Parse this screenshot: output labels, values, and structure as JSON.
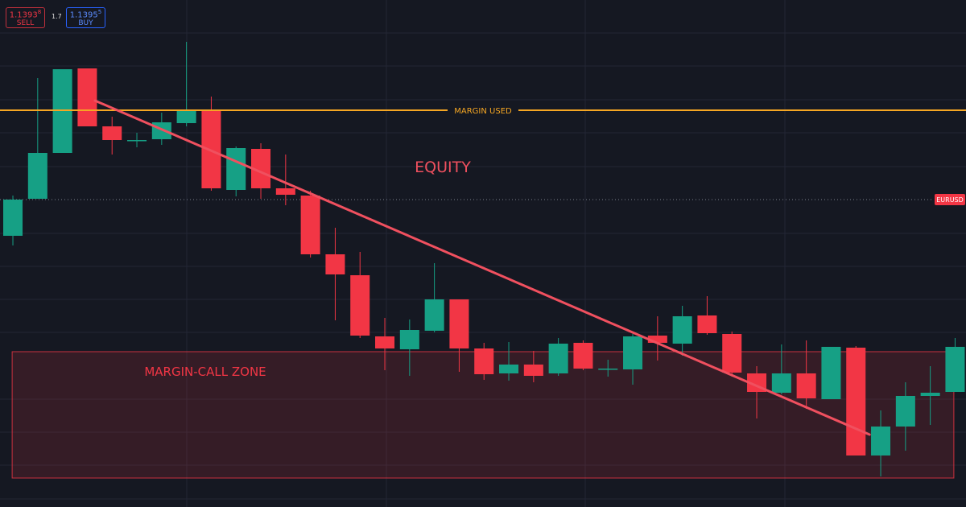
{
  "toolbar": {
    "sell": {
      "price": "1.1393",
      "pip": "8",
      "label": "SELL"
    },
    "spread": "1.7",
    "buy": {
      "price": "1.1395",
      "pip": "5",
      "label": "BUY"
    }
  },
  "chart_data": {
    "type": "candlestick",
    "xlim": [
      -0.52,
      38.44
    ],
    "ylim": [
      1.13558,
      1.14188
    ],
    "up_color": "#16a085",
    "down_color": "#f23645",
    "open": [
      1.13895,
      1.13941,
      1.13998,
      1.14103,
      1.14031,
      1.14014,
      1.14015,
      1.14035,
      1.14052,
      1.13952,
      1.14003,
      1.13954,
      1.13945,
      1.13872,
      1.13846,
      1.1377,
      1.13754,
      1.13777,
      1.13816,
      1.13755,
      1.13724,
      1.13735,
      1.13724,
      1.13762,
      1.1373,
      1.13729,
      1.13771,
      1.13761,
      1.13796,
      1.13773,
      1.13724,
      1.137,
      1.13724,
      1.13692,
      1.13756,
      1.13622,
      1.13658,
      1.13696,
      1.13701
    ],
    "high": [
      1.13945,
      1.14091,
      1.14102,
      1.14103,
      1.14043,
      1.14023,
      1.14048,
      1.14136,
      1.14068,
      1.14006,
      1.1401,
      1.13996,
      1.13951,
      1.13905,
      1.13875,
      1.13793,
      1.13791,
      1.13861,
      1.13816,
      1.13762,
      1.13763,
      1.13752,
      1.13768,
      1.13765,
      1.13741,
      1.13773,
      1.13795,
      1.13808,
      1.1382,
      1.13776,
      1.13733,
      1.1376,
      1.13765,
      1.13757,
      1.13758,
      1.13678,
      1.13713,
      1.13733,
      1.13768
    ],
    "low": [
      1.13883,
      1.13941,
      1.13998,
      1.14031,
      1.13996,
      1.14005,
      1.14008,
      1.14031,
      1.13951,
      1.13944,
      1.13941,
      1.13933,
      1.13868,
      1.1379,
      1.13768,
      1.13728,
      1.13721,
      1.13775,
      1.13726,
      1.13716,
      1.13715,
      1.13713,
      1.13721,
      1.13728,
      1.1372,
      1.1371,
      1.1374,
      1.13746,
      1.13772,
      1.1372,
      1.13668,
      1.13698,
      1.1368,
      1.13692,
      1.13622,
      1.13596,
      1.13628,
      1.1366,
      1.13701
    ],
    "close": [
      1.1394,
      1.13998,
      1.14102,
      1.14031,
      1.14014,
      1.14014,
      1.14036,
      1.14051,
      1.13954,
      1.14004,
      1.13954,
      1.13946,
      1.13872,
      1.13847,
      1.13771,
      1.13755,
      1.13778,
      1.13816,
      1.13755,
      1.13723,
      1.13735,
      1.13721,
      1.13761,
      1.1373,
      1.1373,
      1.1377,
      1.13762,
      1.13795,
      1.13774,
      1.13725,
      1.13701,
      1.13724,
      1.13693,
      1.13757,
      1.13622,
      1.13658,
      1.13696,
      1.137,
      1.13757
    ],
    "trendline": {
      "label": "EQUITY",
      "color": "#f0505f",
      "x": [
        3.31,
        34.55
      ],
      "y": [
        1.14063,
        1.13648
      ]
    },
    "margin_used": {
      "label": "MARGIN USED",
      "value": 1.14051,
      "color": "#f5a623"
    },
    "margin_call_zone": {
      "label": "MARGIN-CALL ZONE",
      "color": "#f23645",
      "x": [
        -0.03,
        37.95
      ],
      "y": [
        1.13594,
        1.13751
      ]
    },
    "last_price": {
      "label": "EURUSD",
      "value": 1.1394,
      "color": "#f23645"
    }
  }
}
